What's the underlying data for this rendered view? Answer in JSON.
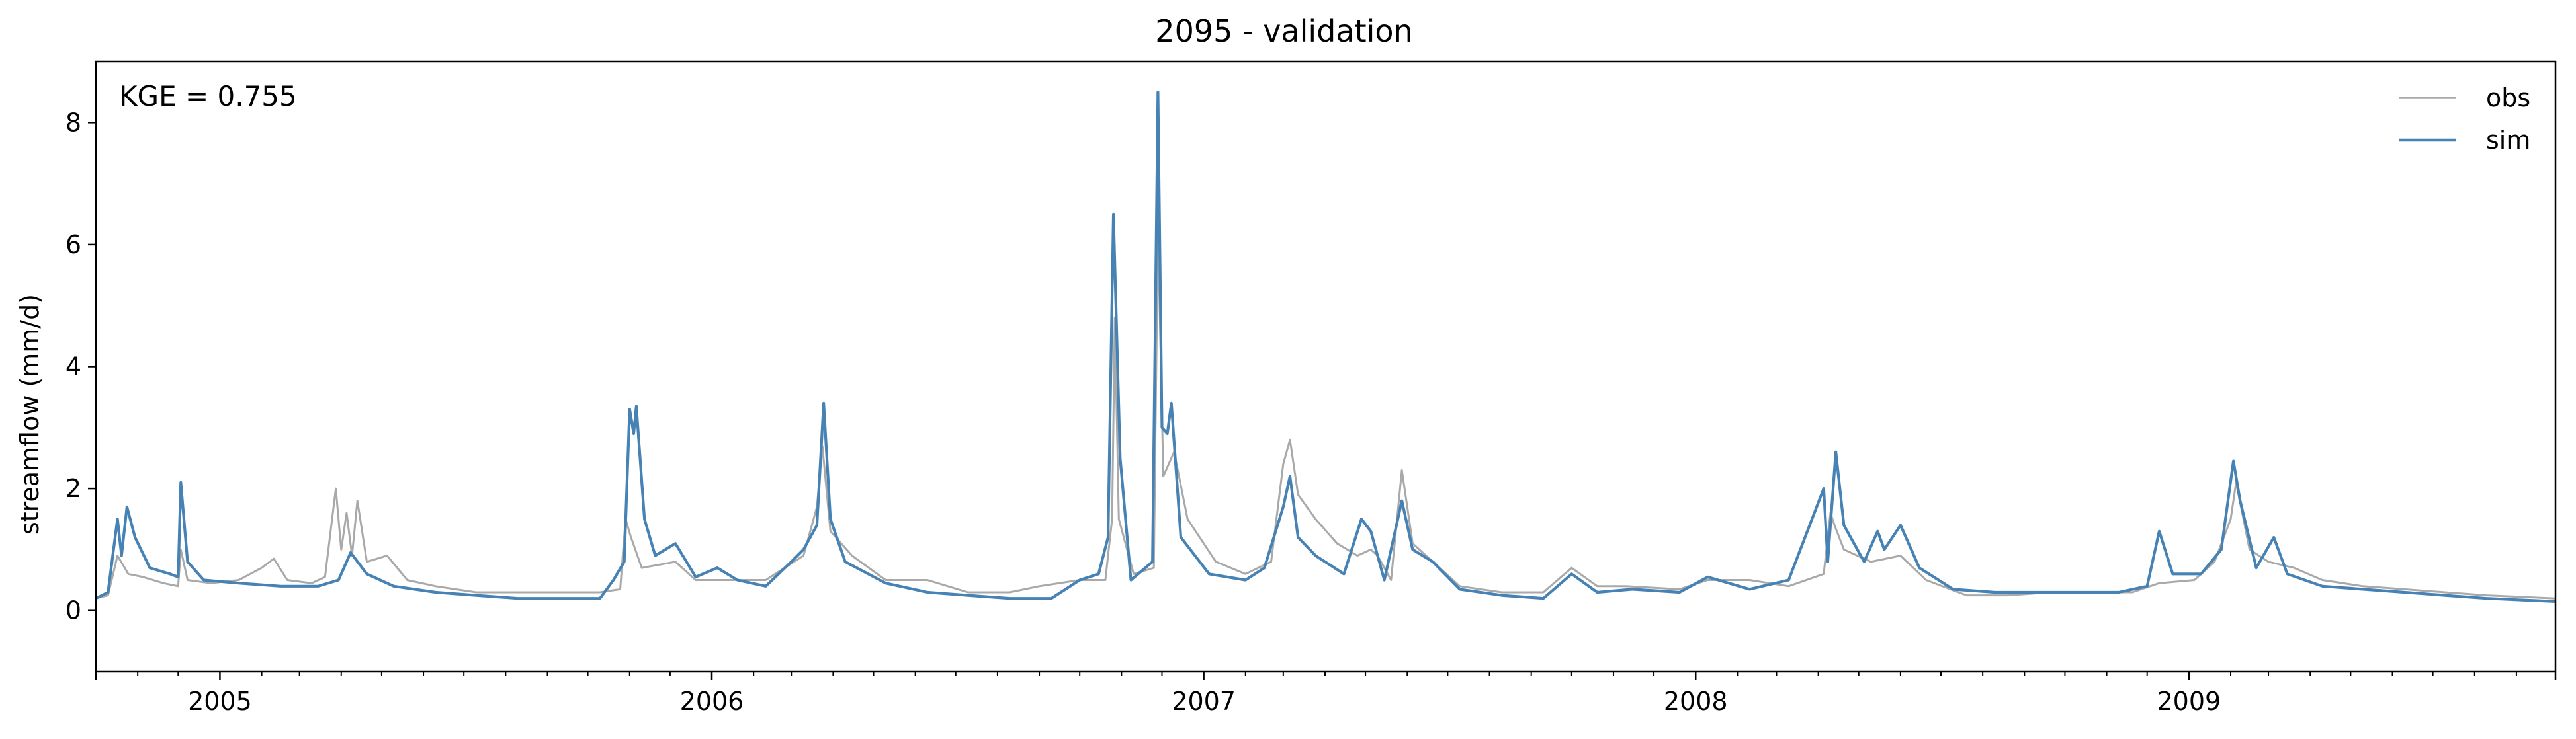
{
  "chart_data": {
    "type": "line",
    "title": "2095 - validation",
    "xlabel": "",
    "ylabel": "streamflow (mm/d)",
    "annotation": "KGE = 0.755",
    "legend_placement": "top-right",
    "grid": false,
    "xlim": [
      "2004-10-01",
      "2009-09-30"
    ],
    "ylim": [
      -1,
      9
    ],
    "yticks": [
      0,
      2,
      4,
      6,
      8
    ],
    "xticks": [
      {
        "date": "2005-01-01",
        "label": "2005"
      },
      {
        "date": "2006-01-01",
        "label": "2006"
      },
      {
        "date": "2007-01-01",
        "label": "2007"
      },
      {
        "date": "2008-01-01",
        "label": "2008"
      },
      {
        "date": "2009-01-01",
        "label": "2009"
      }
    ],
    "minor_xticks": [
      "2004-11-01",
      "2004-12-01",
      "2005-02-01",
      "2005-03-01",
      "2005-04-01",
      "2005-05-01",
      "2005-06-01",
      "2005-07-01",
      "2005-08-01",
      "2005-09-01",
      "2005-10-01",
      "2005-11-01",
      "2005-12-01",
      "2006-02-01",
      "2006-03-01",
      "2006-04-01",
      "2006-05-01",
      "2006-06-01",
      "2006-07-01",
      "2006-08-01",
      "2006-09-01",
      "2006-10-01",
      "2006-11-01",
      "2006-12-01",
      "2007-02-01",
      "2007-03-01",
      "2007-04-01",
      "2007-05-01",
      "2007-06-01",
      "2007-07-01",
      "2007-08-01",
      "2007-09-01",
      "2007-10-01",
      "2007-11-01",
      "2007-12-01",
      "2008-02-01",
      "2008-03-01",
      "2008-04-01",
      "2008-05-01",
      "2008-06-01",
      "2008-07-01",
      "2008-08-01",
      "2008-09-01",
      "2008-10-01",
      "2008-11-01",
      "2008-12-01",
      "2009-02-01",
      "2009-03-01",
      "2009-04-01",
      "2009-05-01",
      "2009-06-01",
      "2009-07-01",
      "2009-08-01",
      "2009-09-01"
    ],
    "series": [
      {
        "name": "obs",
        "color": "#a9a9a9",
        "points": [
          [
            "2004-10-01",
            0.2
          ],
          [
            "2004-10-10",
            0.25
          ],
          [
            "2004-10-17",
            0.9
          ],
          [
            "2004-10-25",
            0.6
          ],
          [
            "2004-11-05",
            0.55
          ],
          [
            "2004-11-20",
            0.45
          ],
          [
            "2004-12-01",
            0.4
          ],
          [
            "2004-12-03",
            1.0
          ],
          [
            "2004-12-08",
            0.5
          ],
          [
            "2004-12-25",
            0.45
          ],
          [
            "2005-01-15",
            0.5
          ],
          [
            "2005-02-01",
            0.7
          ],
          [
            "2005-02-10",
            0.85
          ],
          [
            "2005-02-20",
            0.5
          ],
          [
            "2005-03-10",
            0.45
          ],
          [
            "2005-03-20",
            0.55
          ],
          [
            "2005-03-28",
            2.0
          ],
          [
            "2005-04-01",
            1.0
          ],
          [
            "2005-04-05",
            1.6
          ],
          [
            "2005-04-09",
            0.9
          ],
          [
            "2005-04-13",
            1.8
          ],
          [
            "2005-04-20",
            0.8
          ],
          [
            "2005-05-05",
            0.9
          ],
          [
            "2005-05-20",
            0.5
          ],
          [
            "2005-06-10",
            0.4
          ],
          [
            "2005-07-10",
            0.3
          ],
          [
            "2005-08-10",
            0.3
          ],
          [
            "2005-09-10",
            0.3
          ],
          [
            "2005-10-10",
            0.3
          ],
          [
            "2005-10-25",
            0.35
          ],
          [
            "2005-10-29",
            1.5
          ],
          [
            "2005-11-02",
            1.2
          ],
          [
            "2005-11-10",
            0.7
          ],
          [
            "2005-12-05",
            0.8
          ],
          [
            "2005-12-20",
            0.5
          ],
          [
            "2006-01-10",
            0.5
          ],
          [
            "2006-02-10",
            0.5
          ],
          [
            "2006-03-10",
            0.9
          ],
          [
            "2006-03-20",
            1.7
          ],
          [
            "2006-03-24",
            2.7
          ],
          [
            "2006-03-30",
            1.3
          ],
          [
            "2006-04-15",
            0.9
          ],
          [
            "2006-05-10",
            0.5
          ],
          [
            "2006-06-10",
            0.5
          ],
          [
            "2006-07-10",
            0.3
          ],
          [
            "2006-08-10",
            0.3
          ],
          [
            "2006-09-01",
            0.4
          ],
          [
            "2006-10-01",
            0.5
          ],
          [
            "2006-10-20",
            0.5
          ],
          [
            "2006-10-25",
            1.5
          ],
          [
            "2006-10-27",
            4.8
          ],
          [
            "2006-10-30",
            1.5
          ],
          [
            "2006-11-10",
            0.6
          ],
          [
            "2006-11-25",
            0.7
          ],
          [
            "2006-11-28",
            6.3
          ],
          [
            "2006-12-02",
            2.2
          ],
          [
            "2006-12-10",
            2.6
          ],
          [
            "2006-12-20",
            1.5
          ],
          [
            "2007-01-10",
            0.8
          ],
          [
            "2007-02-01",
            0.6
          ],
          [
            "2007-02-20",
            0.8
          ],
          [
            "2007-03-01",
            2.4
          ],
          [
            "2007-03-06",
            2.8
          ],
          [
            "2007-03-12",
            1.9
          ],
          [
            "2007-03-25",
            1.5
          ],
          [
            "2007-04-10",
            1.1
          ],
          [
            "2007-04-25",
            0.9
          ],
          [
            "2007-05-05",
            1.0
          ],
          [
            "2007-05-10",
            0.9
          ],
          [
            "2007-05-20",
            0.5
          ],
          [
            "2007-05-28",
            2.3
          ],
          [
            "2007-06-05",
            1.1
          ],
          [
            "2007-06-20",
            0.8
          ],
          [
            "2007-07-10",
            0.4
          ],
          [
            "2007-08-10",
            0.3
          ],
          [
            "2007-09-10",
            0.3
          ],
          [
            "2007-10-01",
            0.7
          ],
          [
            "2007-10-20",
            0.4
          ],
          [
            "2007-11-10",
            0.4
          ],
          [
            "2007-12-20",
            0.35
          ],
          [
            "2008-01-10",
            0.5
          ],
          [
            "2008-02-10",
            0.5
          ],
          [
            "2008-03-10",
            0.4
          ],
          [
            "2008-04-05",
            0.6
          ],
          [
            "2008-04-10",
            1.6
          ],
          [
            "2008-04-13",
            1.4
          ],
          [
            "2008-04-20",
            1.0
          ],
          [
            "2008-05-10",
            0.8
          ],
          [
            "2008-06-01",
            0.9
          ],
          [
            "2008-06-20",
            0.5
          ],
          [
            "2008-07-20",
            0.25
          ],
          [
            "2008-08-20",
            0.25
          ],
          [
            "2008-09-20",
            0.3
          ],
          [
            "2008-11-20",
            0.3
          ],
          [
            "2008-12-10",
            0.45
          ],
          [
            "2009-01-05",
            0.5
          ],
          [
            "2009-01-20",
            0.8
          ],
          [
            "2009-02-01",
            1.5
          ],
          [
            "2009-02-05",
            2.1
          ],
          [
            "2009-02-15",
            1.0
          ],
          [
            "2009-03-01",
            0.8
          ],
          [
            "2009-03-20",
            0.7
          ],
          [
            "2009-04-10",
            0.5
          ],
          [
            "2009-05-10",
            0.4
          ],
          [
            "2009-06-10",
            0.35
          ],
          [
            "2009-07-10",
            0.3
          ],
          [
            "2009-08-10",
            0.25
          ],
          [
            "2009-09-30",
            0.2
          ]
        ]
      },
      {
        "name": "sim",
        "color": "#4682b4",
        "points": [
          [
            "2004-10-01",
            0.2
          ],
          [
            "2004-10-10",
            0.3
          ],
          [
            "2004-10-17",
            1.5
          ],
          [
            "2004-10-20",
            0.9
          ],
          [
            "2004-10-24",
            1.7
          ],
          [
            "2004-10-30",
            1.2
          ],
          [
            "2004-11-10",
            0.7
          ],
          [
            "2004-11-25",
            0.6
          ],
          [
            "2004-12-01",
            0.55
          ],
          [
            "2004-12-03",
            2.1
          ],
          [
            "2004-12-08",
            0.8
          ],
          [
            "2004-12-20",
            0.5
          ],
          [
            "2005-01-15",
            0.45
          ],
          [
            "2005-02-15",
            0.4
          ],
          [
            "2005-03-15",
            0.4
          ],
          [
            "2005-03-30",
            0.5
          ],
          [
            "2005-04-08",
            0.95
          ],
          [
            "2005-04-20",
            0.6
          ],
          [
            "2005-05-10",
            0.4
          ],
          [
            "2005-06-10",
            0.3
          ],
          [
            "2005-07-10",
            0.25
          ],
          [
            "2005-08-10",
            0.2
          ],
          [
            "2005-09-10",
            0.2
          ],
          [
            "2005-10-10",
            0.2
          ],
          [
            "2005-10-20",
            0.5
          ],
          [
            "2005-10-28",
            0.8
          ],
          [
            "2005-11-01",
            3.3
          ],
          [
            "2005-11-04",
            2.9
          ],
          [
            "2005-11-06",
            3.35
          ],
          [
            "2005-11-12",
            1.5
          ],
          [
            "2005-11-20",
            0.9
          ],
          [
            "2005-12-05",
            1.1
          ],
          [
            "2005-12-20",
            0.55
          ],
          [
            "2006-01-05",
            0.7
          ],
          [
            "2006-01-20",
            0.5
          ],
          [
            "2006-02-10",
            0.4
          ],
          [
            "2006-03-01",
            0.8
          ],
          [
            "2006-03-10",
            1.0
          ],
          [
            "2006-03-20",
            1.4
          ],
          [
            "2006-03-25",
            3.4
          ],
          [
            "2006-03-30",
            1.5
          ],
          [
            "2006-04-10",
            0.8
          ],
          [
            "2006-05-10",
            0.45
          ],
          [
            "2006-06-10",
            0.3
          ],
          [
            "2006-07-10",
            0.25
          ],
          [
            "2006-08-10",
            0.2
          ],
          [
            "2006-09-10",
            0.2
          ],
          [
            "2006-10-01",
            0.5
          ],
          [
            "2006-10-15",
            0.6
          ],
          [
            "2006-10-22",
            1.2
          ],
          [
            "2006-10-26",
            6.5
          ],
          [
            "2006-10-31",
            2.5
          ],
          [
            "2006-11-08",
            0.5
          ],
          [
            "2006-11-24",
            0.8
          ],
          [
            "2006-11-28",
            8.5
          ],
          [
            "2006-12-01",
            3.0
          ],
          [
            "2006-12-05",
            2.9
          ],
          [
            "2006-12-08",
            3.4
          ],
          [
            "2006-12-15",
            1.2
          ],
          [
            "2007-01-05",
            0.6
          ],
          [
            "2007-02-01",
            0.5
          ],
          [
            "2007-02-15",
            0.7
          ],
          [
            "2007-03-01",
            1.7
          ],
          [
            "2007-03-06",
            2.2
          ],
          [
            "2007-03-12",
            1.2
          ],
          [
            "2007-03-25",
            0.9
          ],
          [
            "2007-04-15",
            0.6
          ],
          [
            "2007-04-28",
            1.5
          ],
          [
            "2007-05-05",
            1.3
          ],
          [
            "2007-05-15",
            0.5
          ],
          [
            "2007-05-28",
            1.8
          ],
          [
            "2007-06-05",
            1.0
          ],
          [
            "2007-06-20",
            0.8
          ],
          [
            "2007-07-10",
            0.35
          ],
          [
            "2007-08-10",
            0.25
          ],
          [
            "2007-09-10",
            0.2
          ],
          [
            "2007-10-01",
            0.6
          ],
          [
            "2007-10-20",
            0.3
          ],
          [
            "2007-11-15",
            0.35
          ],
          [
            "2007-12-20",
            0.3
          ],
          [
            "2008-01-10",
            0.55
          ],
          [
            "2008-02-10",
            0.35
          ],
          [
            "2008-03-10",
            0.5
          ],
          [
            "2008-04-05",
            2.0
          ],
          [
            "2008-04-08",
            0.8
          ],
          [
            "2008-04-14",
            2.6
          ],
          [
            "2008-04-20",
            1.4
          ],
          [
            "2008-05-05",
            0.8
          ],
          [
            "2008-05-15",
            1.3
          ],
          [
            "2008-05-20",
            1.0
          ],
          [
            "2008-06-01",
            1.4
          ],
          [
            "2008-06-15",
            0.7
          ],
          [
            "2008-07-10",
            0.35
          ],
          [
            "2008-08-10",
            0.3
          ],
          [
            "2008-09-10",
            0.3
          ],
          [
            "2008-11-10",
            0.3
          ],
          [
            "2008-12-01",
            0.4
          ],
          [
            "2008-12-10",
            1.3
          ],
          [
            "2008-12-20",
            0.6
          ],
          [
            "2009-01-10",
            0.6
          ],
          [
            "2009-01-25",
            1.0
          ],
          [
            "2009-02-03",
            2.45
          ],
          [
            "2009-02-08",
            1.8
          ],
          [
            "2009-02-20",
            0.7
          ],
          [
            "2009-03-05",
            1.2
          ],
          [
            "2009-03-15",
            0.6
          ],
          [
            "2009-04-10",
            0.4
          ],
          [
            "2009-05-10",
            0.35
          ],
          [
            "2009-06-10",
            0.3
          ],
          [
            "2009-07-10",
            0.25
          ],
          [
            "2009-08-10",
            0.2
          ],
          [
            "2009-09-30",
            0.15
          ]
        ]
      }
    ]
  }
}
